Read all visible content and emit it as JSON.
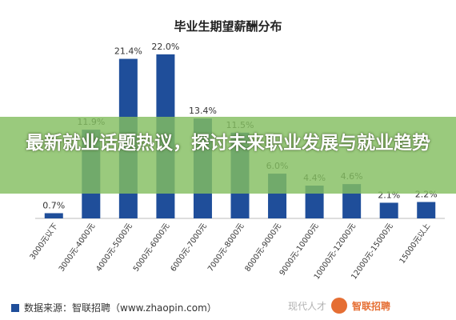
{
  "chart_data": {
    "type": "bar",
    "title": "毕业生期望薪酬分布",
    "categories": [
      "3000元以下",
      "3000元-4000元",
      "4000元-5000元",
      "5000元-6000元",
      "6000元-7000元",
      "7000元-8000元",
      "8000元-9000元",
      "9000元-10000元",
      "10000元-12000元",
      "12000元-15000元",
      "15000元以上"
    ],
    "values": [
      0.7,
      11.9,
      21.4,
      22.0,
      13.4,
      11.5,
      6.0,
      4.4,
      4.6,
      2.1,
      2.2
    ],
    "data_labels": [
      "0.7%",
      "11.9%",
      "21.4%",
      "22.0%",
      "13.4%",
      "11.5%",
      "6.0%",
      "4.4%",
      "4.6%",
      "2.1%",
      "2.2%"
    ],
    "ylim": [
      0,
      25
    ],
    "grid": false,
    "bar_color": "#1f4e9a"
  },
  "overlay": {
    "headline": "最新就业话题热议，探讨未来职业发展与就业趋势",
    "color": "#84be60"
  },
  "footer": {
    "source": "数据来源：智联招聘（www.zhaopin.com）"
  },
  "watermark": {
    "brand": "智联招聘",
    "faint_text": "现代人才"
  }
}
